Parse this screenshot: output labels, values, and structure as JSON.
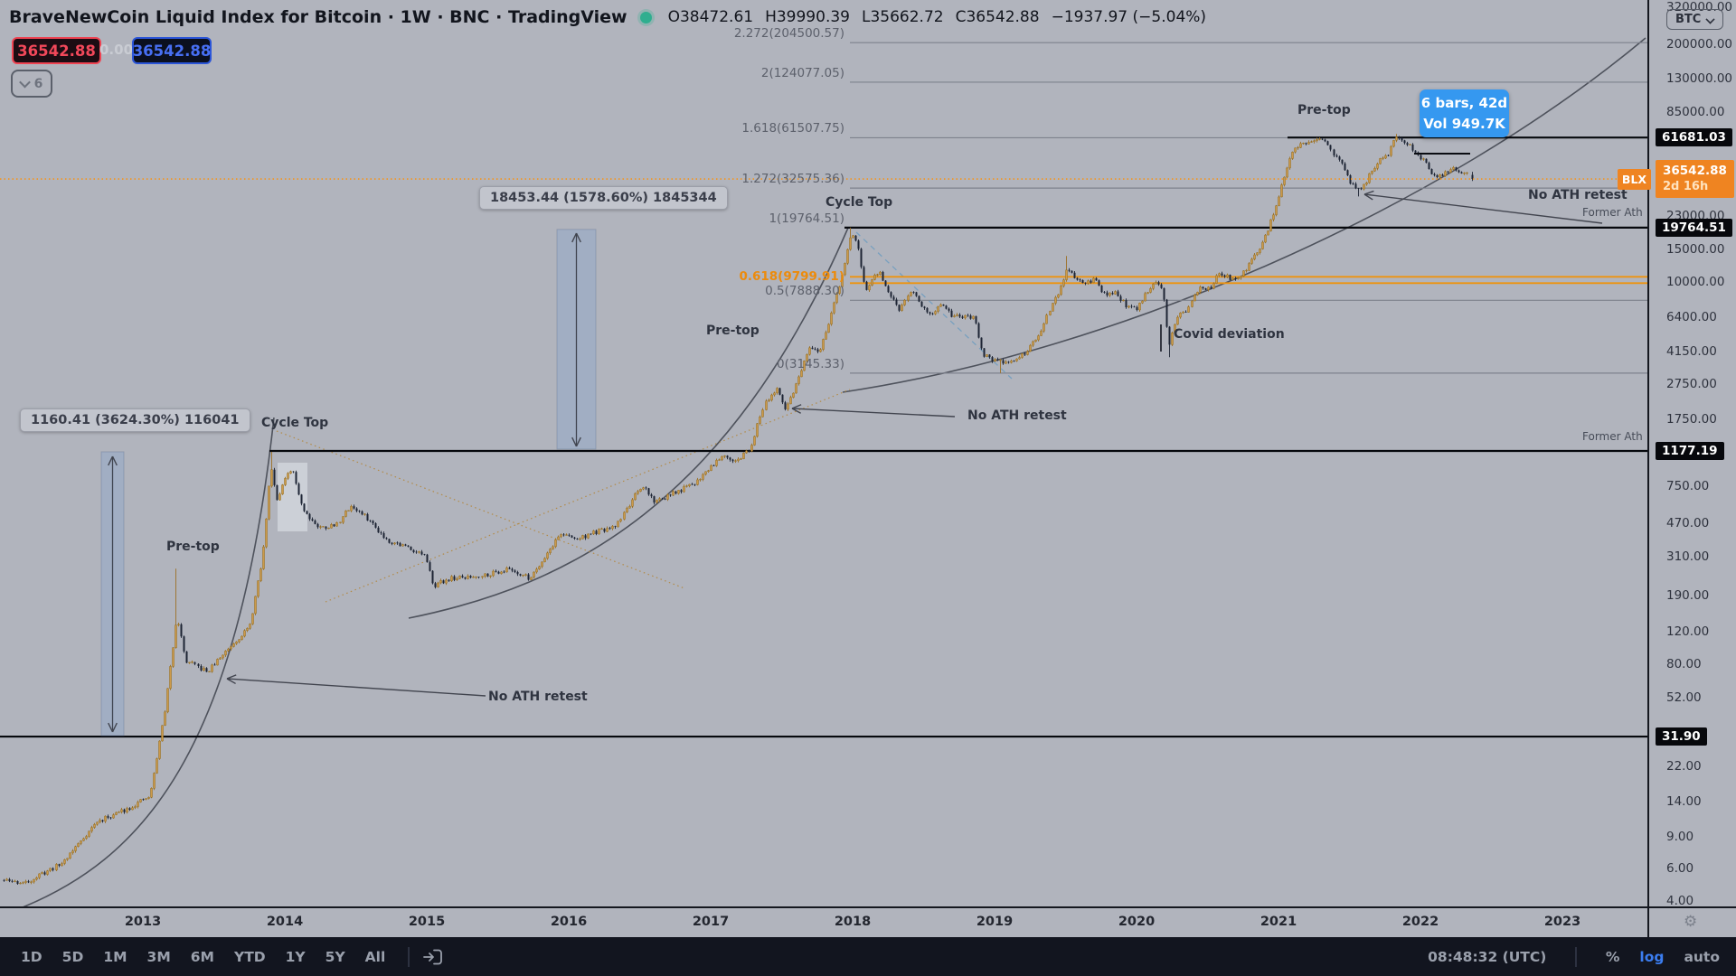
{
  "header": {
    "title": "BraveNewCoin Liquid Index for Bitcoin · 1W · BNC · TradingView",
    "ohlc": {
      "open": "O38472.61",
      "high": "H39990.39",
      "low": "L35662.72",
      "close": "C36542.88",
      "change": "−1937.97 (−5.04%)"
    },
    "price_boxes": {
      "sell": "36542.88",
      "spread": "0.00",
      "buy": "36542.88"
    },
    "indicator_toggle": {
      "count": "6"
    }
  },
  "annotations": [
    {
      "id": "pre-top-2013",
      "text": "Pre-top",
      "cls": ""
    },
    {
      "id": "cycle-top-2014",
      "text": "Cycle Top",
      "cls": ""
    },
    {
      "id": "no-ath-retest-2014",
      "text": "No ATH retest",
      "cls": "bold"
    },
    {
      "id": "pre-top-2017",
      "text": "Pre-top",
      "cls": ""
    },
    {
      "id": "cycle-top-2018",
      "text": "Cycle Top",
      "cls": ""
    },
    {
      "id": "no-ath-retest-2018",
      "text": "No ATH retest",
      "cls": "bold"
    },
    {
      "id": "covid-deviation",
      "text": "Covid deviation",
      "cls": ""
    },
    {
      "id": "pre-top-2021",
      "text": "Pre-top",
      "cls": ""
    },
    {
      "id": "no-ath-retest-2022",
      "text": "No ATH retest",
      "cls": "bold"
    },
    {
      "id": "former-ath-upper",
      "text": "Former Ath",
      "cls": "small"
    },
    {
      "id": "former-ath-lower",
      "text": "Former Ath",
      "cls": "small"
    }
  ],
  "measurements": [
    {
      "label": "18453.44 (1578.60%) 1845344"
    },
    {
      "label": "1160.41 (3624.30%) 116041"
    }
  ],
  "bars_tooltip": {
    "line1": "6 bars, 42d",
    "line2": "Vol 949.7K"
  },
  "fib": {
    "levels": [
      {
        "label": "2.272(204500.57)",
        "price": 204500.57,
        "color": "gray"
      },
      {
        "label": "2(124077.05)",
        "price": 124077.05,
        "color": "gray"
      },
      {
        "label": "1.618(61507.75)",
        "price": 61507.75,
        "color": "gray"
      },
      {
        "label": "1.272(32575.36)",
        "price": 32575.36,
        "color": "gray"
      },
      {
        "label": "1(19764.51)",
        "price": 19764.51,
        "color": "gray"
      },
      {
        "label": "0.618(9799.91)",
        "price": 9799.91,
        "color": "orange"
      },
      {
        "label": "0.5(7888.30)",
        "price": 7888.3,
        "color": "gray"
      },
      {
        "label": "0(3145.33)",
        "price": 3145.33,
        "color": "gray"
      }
    ]
  },
  "price_scale": {
    "currency_button": "BTC",
    "symbol_label": "BLX",
    "ticks": [
      {
        "price": 320000,
        "label": "320000.00"
      },
      {
        "price": 200000,
        "label": "200000.00"
      },
      {
        "price": 130000,
        "label": "130000.00"
      },
      {
        "price": 85000,
        "label": "85000.00"
      },
      {
        "price": 23000,
        "label": "23000.00"
      },
      {
        "price": 15000,
        "label": "15000.00"
      },
      {
        "price": 10000,
        "label": "10000.00"
      },
      {
        "price": 6400,
        "label": "6400.00"
      },
      {
        "price": 4150,
        "label": "4150.00"
      },
      {
        "price": 2750,
        "label": "2750.00"
      },
      {
        "price": 1750,
        "label": "1750.00"
      },
      {
        "price": 750,
        "label": "750.00"
      },
      {
        "price": 470,
        "label": "470.00"
      },
      {
        "price": 310,
        "label": "310.00"
      },
      {
        "price": 190,
        "label": "190.00"
      },
      {
        "price": 120,
        "label": "120.00"
      },
      {
        "price": 80,
        "label": "80.00"
      },
      {
        "price": 52,
        "label": "52.00"
      },
      {
        "price": 22,
        "label": "22.00"
      },
      {
        "price": 14,
        "label": "14.00"
      },
      {
        "price": 9,
        "label": "9.00"
      },
      {
        "price": 6,
        "label": "6.00"
      },
      {
        "price": 4,
        "label": "4.00"
      }
    ],
    "badges": [
      {
        "price": 61681.03,
        "label": "61681.03",
        "type": "black"
      },
      {
        "price": 36542.88,
        "label": "36542.88",
        "sub": "2d 16h",
        "type": "orange"
      },
      {
        "price": 19764.51,
        "label": "19764.51",
        "type": "black"
      },
      {
        "price": 1177.19,
        "label": "1177.19",
        "type": "black"
      },
      {
        "price": 31.9,
        "label": "31.90",
        "type": "black"
      }
    ]
  },
  "time_axis": {
    "years": [
      2013,
      2014,
      2015,
      2016,
      2017,
      2018,
      2019,
      2020,
      2021,
      2022,
      2023
    ]
  },
  "toolbar": {
    "ranges": [
      "1D",
      "5D",
      "1M",
      "3M",
      "6M",
      "YTD",
      "1Y",
      "5Y",
      "All"
    ],
    "clock": "08:48:32 (UTC)",
    "percent": "%",
    "log": "log",
    "auto": "auto"
  },
  "colors": {
    "accent_orange": "#ef8421",
    "price_line_orange": "#f7931a",
    "accent_red": "#f23645",
    "accent_blue": "#2962ff",
    "tooltip_blue": "#3598f0",
    "up_candle": "#cd9a4a",
    "down_candle": "#1d2434",
    "black_level": "#06080d"
  },
  "chart_data": {
    "type": "candlestick",
    "symbol": "BLX",
    "exchange": "BNC",
    "timeframe": "1W",
    "scale": "log",
    "current_bar": {
      "open": 38472.61,
      "high": 39990.39,
      "low": 35662.72,
      "close": 36542.88,
      "change": -1937.97,
      "change_pct": -5.04
    },
    "ylim": [
      4,
      320000
    ],
    "x_axis_years": [
      2013,
      2014,
      2015,
      2016,
      2017,
      2018,
      2019,
      2020,
      2021,
      2022,
      2023
    ],
    "key_levels": {
      "former_ath": [
        31.9,
        1177.19,
        19764.51,
        61681.03
      ],
      "current_price": 36542.88
    },
    "fib_extension": {
      "0": 3145.33,
      "0.5": 7888.3,
      "0.618": 9799.91,
      "1": 19764.51,
      "1.272": 32575.36,
      "1.618": 61507.75,
      "2": 124077.05,
      "2.272": 204500.57
    },
    "anchors": [
      [
        2012.0,
        5.2
      ],
      [
        2012.17,
        5.0
      ],
      [
        2012.42,
        6.4
      ],
      [
        2012.67,
        10.8
      ],
      [
        2012.92,
        13.2
      ],
      [
        2013.05,
        15
      ],
      [
        2013.16,
        47
      ],
      [
        2013.24,
        150
      ],
      [
        2013.3,
        83
      ],
      [
        2013.45,
        72
      ],
      [
        2013.6,
        98
      ],
      [
        2013.75,
        128
      ],
      [
        2013.84,
        300
      ],
      [
        2013.9,
        1000
      ],
      [
        2013.94,
        640
      ],
      [
        2014.0,
        820
      ],
      [
        2014.05,
        930
      ],
      [
        2014.13,
        560
      ],
      [
        2014.24,
        445
      ],
      [
        2014.36,
        460
      ],
      [
        2014.46,
        590
      ],
      [
        2014.58,
        500
      ],
      [
        2014.72,
        380
      ],
      [
        2014.86,
        350
      ],
      [
        2014.98,
        315
      ],
      [
        2015.05,
        215
      ],
      [
        2015.16,
        235
      ],
      [
        2015.3,
        238
      ],
      [
        2015.44,
        250
      ],
      [
        2015.58,
        265
      ],
      [
        2015.72,
        235
      ],
      [
        2015.83,
        310
      ],
      [
        2015.94,
        415
      ],
      [
        2016.05,
        385
      ],
      [
        2016.18,
        420
      ],
      [
        2016.32,
        445
      ],
      [
        2016.46,
        665
      ],
      [
        2016.53,
        745
      ],
      [
        2016.6,
        620
      ],
      [
        2016.74,
        690
      ],
      [
        2016.88,
        775
      ],
      [
        2017.0,
        970
      ],
      [
        2017.09,
        1140
      ],
      [
        2017.18,
        1020
      ],
      [
        2017.28,
        1230
      ],
      [
        2017.38,
        2200
      ],
      [
        2017.46,
        2550
      ],
      [
        2017.52,
        1980
      ],
      [
        2017.6,
        2750
      ],
      [
        2017.69,
        4250
      ],
      [
        2017.76,
        4050
      ],
      [
        2017.84,
        6400
      ],
      [
        2017.91,
        9700
      ],
      [
        2017.955,
        14200
      ],
      [
        2017.99,
        18900
      ],
      [
        2018.04,
        14800
      ],
      [
        2018.09,
        8700
      ],
      [
        2018.14,
        10400
      ],
      [
        2018.19,
        11200
      ],
      [
        2018.26,
        8400
      ],
      [
        2018.33,
        6950
      ],
      [
        2018.4,
        9100
      ],
      [
        2018.48,
        7450
      ],
      [
        2018.55,
        6650
      ],
      [
        2018.62,
        7350
      ],
      [
        2018.7,
        6450
      ],
      [
        2018.79,
        6400
      ],
      [
        2018.86,
        6250
      ],
      [
        2018.91,
        4050
      ],
      [
        2018.98,
        3750
      ],
      [
        2019.03,
        3600
      ],
      [
        2019.12,
        3680
      ],
      [
        2019.22,
        4000
      ],
      [
        2019.31,
        5100
      ],
      [
        2019.39,
        7150
      ],
      [
        2019.45,
        8650
      ],
      [
        2019.5,
        11400
      ],
      [
        2019.56,
        10700
      ],
      [
        2019.63,
        9750
      ],
      [
        2019.7,
        10250
      ],
      [
        2019.78,
        8250
      ],
      [
        2019.85,
        8750
      ],
      [
        2019.93,
        7250
      ],
      [
        2020.0,
        7150
      ],
      [
        2020.09,
        9250
      ],
      [
        2020.14,
        10100
      ],
      [
        2020.19,
        8500
      ],
      [
        2020.225,
        4400
      ],
      [
        2020.28,
        6350
      ],
      [
        2020.36,
        7050
      ],
      [
        2020.43,
        9050
      ],
      [
        2020.51,
        9150
      ],
      [
        2020.58,
        11150
      ],
      [
        2020.66,
        10350
      ],
      [
        2020.73,
        10650
      ],
      [
        2020.81,
        13050
      ],
      [
        2020.89,
        16400
      ],
      [
        2020.96,
        23200
      ],
      [
        2021.02,
        33000
      ],
      [
        2021.08,
        47500
      ],
      [
        2021.14,
        56500
      ],
      [
        2021.21,
        59000
      ],
      [
        2021.28,
        59500
      ],
      [
        2021.33,
        57500
      ],
      [
        2021.39,
        49500
      ],
      [
        2021.45,
        42500
      ],
      [
        2021.5,
        35200
      ],
      [
        2021.55,
        31600
      ],
      [
        2021.6,
        33800
      ],
      [
        2021.65,
        40200
      ],
      [
        2021.71,
        47200
      ],
      [
        2021.76,
        48200
      ],
      [
        2021.82,
        62000
      ],
      [
        2021.87,
        59500
      ],
      [
        2021.92,
        56200
      ],
      [
        2021.97,
        49800
      ],
      [
        2022.02,
        46500
      ],
      [
        2022.06,
        42200
      ],
      [
        2022.1,
        36900
      ],
      [
        2022.14,
        38600
      ],
      [
        2022.19,
        40100
      ],
      [
        2022.235,
        43600
      ],
      [
        2022.27,
        39300
      ],
      [
        2022.31,
        38600
      ],
      [
        2022.345,
        38472
      ]
    ],
    "wick_extremes": [
      [
        2013.24,
        "h",
        266
      ],
      [
        2013.9,
        "h",
        1163
      ],
      [
        2017.99,
        "h",
        19764.51
      ],
      [
        2019.03,
        "l",
        3145.33
      ],
      [
        2019.5,
        "h",
        13800
      ],
      [
        2020.225,
        "l",
        3850
      ],
      [
        2021.28,
        "h",
        61681.03
      ],
      [
        2021.55,
        "l",
        29300
      ],
      [
        2021.82,
        "h",
        64500
      ]
    ]
  }
}
